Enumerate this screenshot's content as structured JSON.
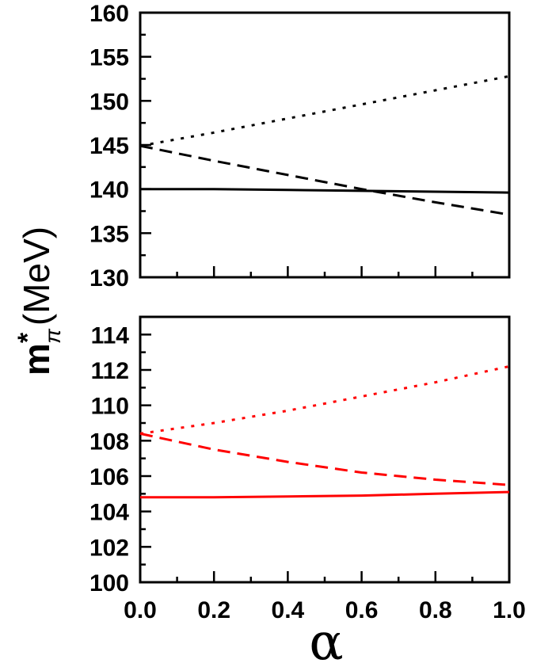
{
  "ylabel": {
    "main": "m",
    "sup": "*",
    "sub": "π",
    "unit": "(MeV)"
  },
  "xlabel": "α",
  "chart_data": [
    {
      "type": "line",
      "panel": "top",
      "xlim": [
        0.0,
        1.0
      ],
      "ylim": [
        130,
        160
      ],
      "ytick_labels": [
        "130",
        "135",
        "140",
        "145",
        "150",
        "155",
        "160"
      ],
      "yticks": [
        130,
        135,
        140,
        145,
        150,
        155,
        160
      ],
      "xticks": [
        0.0,
        0.2,
        0.4,
        0.6,
        0.8,
        1.0
      ],
      "show_x_tick_labels": false,
      "series": [
        {
          "style": "solid",
          "color": "#000000",
          "x": [
            0.0,
            0.2,
            0.4,
            0.6,
            0.8,
            1.0
          ],
          "y": [
            140.0,
            140.0,
            139.9,
            139.8,
            139.7,
            139.6
          ]
        },
        {
          "style": "dashed",
          "color": "#000000",
          "x": [
            0.0,
            0.2,
            0.4,
            0.6,
            0.8,
            1.0
          ],
          "y": [
            144.9,
            143.2,
            141.6,
            140.0,
            138.5,
            137.1
          ]
        },
        {
          "style": "dotted",
          "color": "#000000",
          "x": [
            0.0,
            0.2,
            0.4,
            0.6,
            0.8,
            1.0
          ],
          "y": [
            144.9,
            146.4,
            148.0,
            149.6,
            151.2,
            152.8
          ]
        }
      ]
    },
    {
      "type": "line",
      "panel": "bottom",
      "xlim": [
        0.0,
        1.0
      ],
      "ylim": [
        100,
        115
      ],
      "ytick_labels": [
        "100",
        "102",
        "104",
        "106",
        "108",
        "110",
        "112",
        "114"
      ],
      "yticks": [
        100,
        102,
        104,
        106,
        108,
        110,
        112,
        114
      ],
      "xticks": [
        0.0,
        0.2,
        0.4,
        0.6,
        0.8,
        1.0
      ],
      "xtick_labels": [
        "0.0",
        "0.2",
        "0.4",
        "0.6",
        "0.8",
        "1.0"
      ],
      "series": [
        {
          "style": "solid",
          "color": "#ff0000",
          "x": [
            0.0,
            0.2,
            0.4,
            0.6,
            0.8,
            1.0
          ],
          "y": [
            104.8,
            104.8,
            104.85,
            104.9,
            105.0,
            105.1
          ]
        },
        {
          "style": "dashed",
          "color": "#ff0000",
          "x": [
            0.0,
            0.2,
            0.4,
            0.6,
            0.8,
            1.0
          ],
          "y": [
            108.4,
            107.5,
            106.8,
            106.2,
            105.8,
            105.5
          ]
        },
        {
          "style": "dotted",
          "color": "#ff0000",
          "x": [
            0.0,
            0.2,
            0.4,
            0.6,
            0.8,
            1.0
          ],
          "y": [
            108.4,
            109.0,
            109.7,
            110.5,
            111.3,
            112.2
          ]
        }
      ]
    }
  ]
}
